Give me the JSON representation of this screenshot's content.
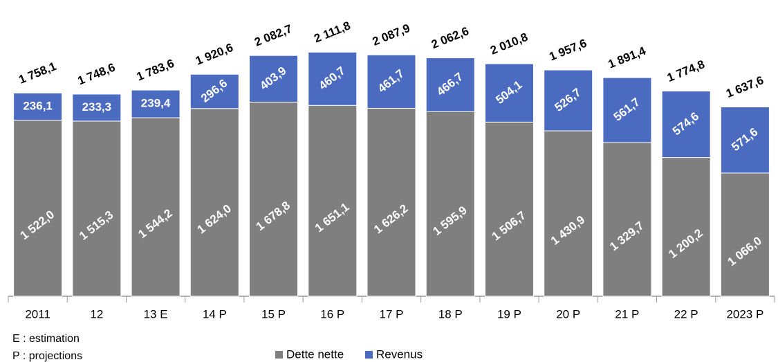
{
  "chart_data": {
    "type": "stacked-bar",
    "categories": [
      "2011",
      "12",
      "13 E",
      "14 P",
      "15 P",
      "16 P",
      "17 P",
      "18 P",
      "19 P",
      "20 P",
      "21 P",
      "22 P",
      "2023 P"
    ],
    "series": [
      {
        "name": "Dette nette",
        "color": "#7f7f7f",
        "values": [
          1522.0,
          1515.3,
          1544.2,
          1624.0,
          1678.8,
          1651.1,
          1626.2,
          1595.9,
          1506.7,
          1430.9,
          1329.7,
          1200.2,
          1066.0
        ],
        "value_labels": [
          "1 522,0",
          "1 515,3",
          "1 544,2",
          "1 624,0",
          "1 678,8",
          "1 651,1",
          "1 626,2",
          "1 595,9",
          "1 506,7",
          "1 430,9",
          "1 329,7",
          "1 200,2",
          "1 066,0"
        ]
      },
      {
        "name": "Revenus",
        "color": "#4a6bbf",
        "values": [
          236.1,
          233.3,
          239.4,
          296.6,
          403.9,
          460.7,
          461.7,
          466.7,
          504.1,
          526.7,
          561.7,
          574.6,
          571.6
        ],
        "value_labels": [
          "236,1",
          "233,3",
          "239,4",
          "296,6",
          "403,9",
          "460,7",
          "461,7",
          "466,7",
          "504,1",
          "526,7",
          "561,7",
          "574,6",
          "571,6"
        ]
      }
    ],
    "totals": {
      "values": [
        1758.1,
        1748.6,
        1783.6,
        1920.6,
        2082.7,
        2111.8,
        2087.9,
        2062.6,
        2010.8,
        1957.6,
        1891.4,
        1774.8,
        1637.6
      ],
      "value_labels": [
        "1 758,1",
        "1 748,6",
        "1 783,6",
        "1 920,6",
        "2 082,7",
        "2 111,8",
        "2 087,9",
        "2 062,6",
        "2 010,8",
        "1 957,6",
        "1 891,4",
        "1 774,8",
        "1 637,6"
      ]
    },
    "ylim": [
      0,
      2500
    ],
    "notes": [
      "E : estimation",
      "P : projections"
    ],
    "legend": "bottom"
  }
}
